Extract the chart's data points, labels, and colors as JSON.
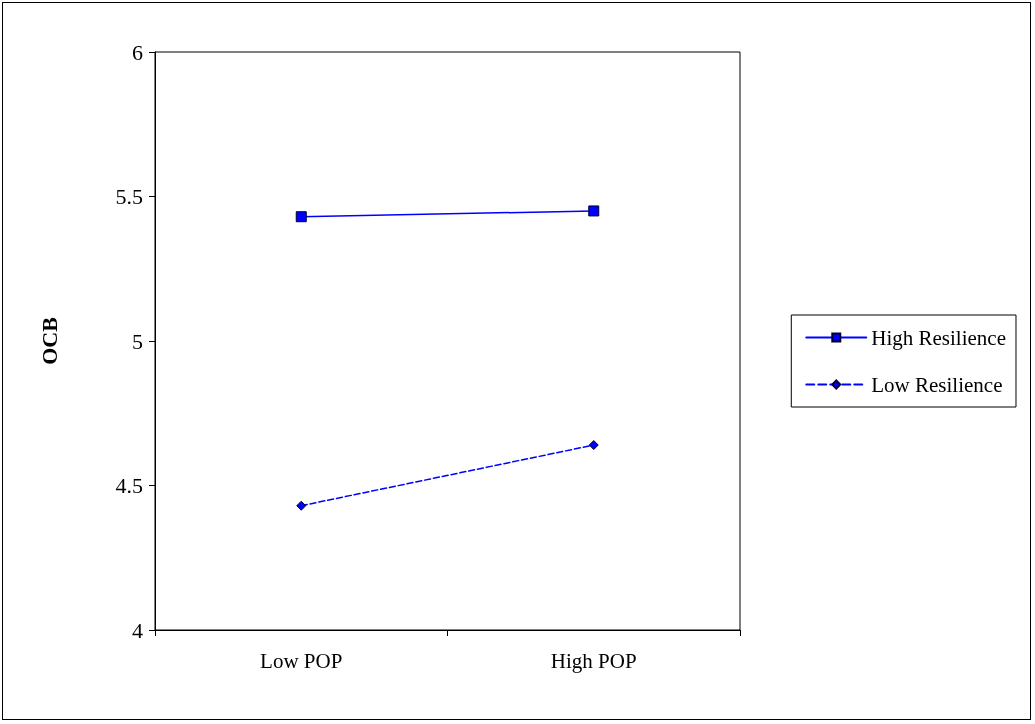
{
  "chart_data": {
    "type": "line",
    "ylabel": "OCB",
    "categories": [
      "Low POP",
      "High POP"
    ],
    "series": [
      {
        "name": "High Resilience",
        "color": "#0000ff",
        "values": [
          5.43,
          5.45
        ],
        "marker": "square",
        "line_style": "solid"
      },
      {
        "name": "Low Resilience",
        "color": "#0000ff",
        "values": [
          4.43,
          4.64
        ],
        "marker": "diamond",
        "line_style": "dashed"
      }
    ],
    "ylim": [
      4,
      6
    ],
    "yticks": [
      4,
      4.5,
      5,
      5.5,
      6
    ],
    "grid": false,
    "legend": "right"
  }
}
